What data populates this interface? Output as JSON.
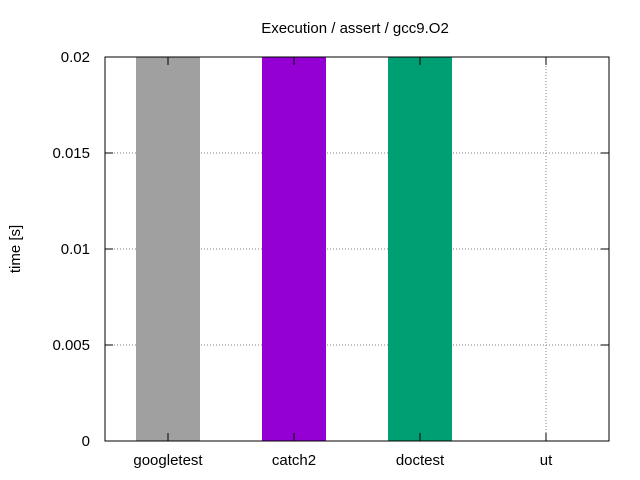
{
  "chart_data": {
    "type": "bar",
    "title": "Execution / assert / gcc9.O2",
    "xlabel": "",
    "ylabel": "time [s]",
    "categories": [
      "googletest",
      "catch2",
      "doctest",
      "ut"
    ],
    "values": [
      0.02,
      0.02,
      0.02,
      0
    ],
    "ylim": [
      0,
      0.02
    ],
    "yticks": [
      "0",
      "0.005",
      "0.01",
      "0.015",
      "0.02"
    ],
    "ytick_values": [
      0,
      0.005,
      0.01,
      0.015,
      0.02
    ],
    "grid": true,
    "legend": "none",
    "colors": [
      "#a0a0a0",
      "#9400d3",
      "#009e73",
      "#56b4e9"
    ]
  }
}
